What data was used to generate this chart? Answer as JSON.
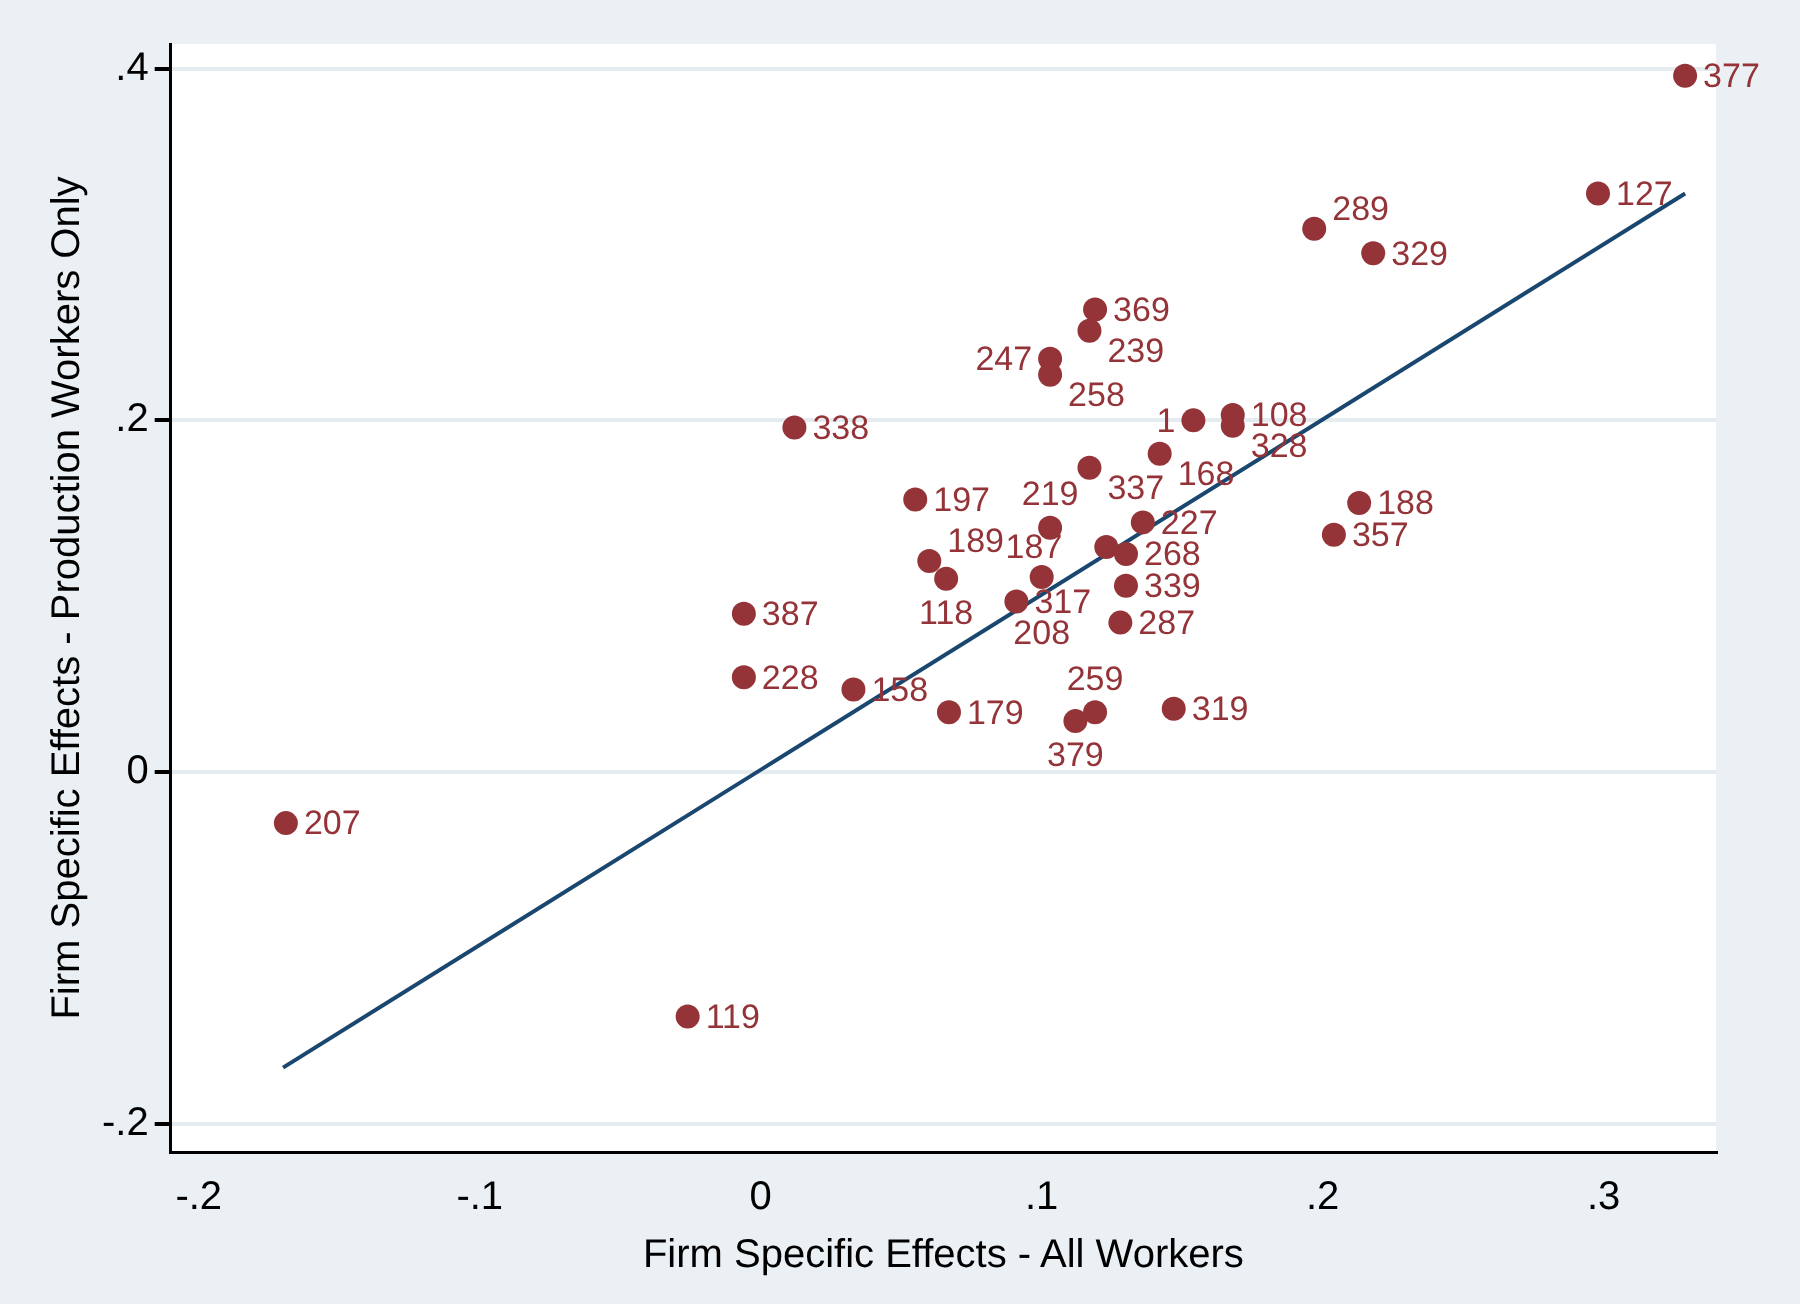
{
  "chart_data": {
    "type": "scatter",
    "xlabel": "Firm Specific Effects - All Workers",
    "ylabel": "Firm Specific Effects - Production Workers Only",
    "xlim": [
      -0.21,
      0.34
    ],
    "ylim": [
      -0.216,
      0.414
    ],
    "xticks": [
      {
        "value": -0.2,
        "label": "-.2"
      },
      {
        "value": -0.1,
        "label": "-.1"
      },
      0,
      {
        "value": 0.1,
        "label": ".1"
      },
      {
        "value": 0.2,
        "label": ".2"
      },
      {
        "value": 0.3,
        "label": ".3"
      }
    ],
    "yticks": [
      {
        "value": -0.2,
        "label": "-.2"
      },
      0,
      {
        "value": 0.2,
        "label": ".2"
      },
      {
        "value": 0.4,
        "label": ".4"
      }
    ],
    "grid": "y",
    "marker": "circle",
    "series": [
      {
        "type": "scatter",
        "color": "#943338",
        "x": [
          0.329,
          0.298,
          0.197,
          0.218,
          0.119,
          0.117,
          0.103,
          0.103,
          0.012,
          0.154,
          0.168,
          0.168,
          0.142,
          0.117,
          0.055,
          0.103,
          0.136,
          0.123,
          0.13,
          0.213,
          0.204,
          0.06,
          0.066,
          0.1,
          0.13,
          0.091,
          0.128,
          -0.006,
          -0.006,
          0.033,
          0.067,
          0.119,
          0.112,
          0.147,
          -0.169,
          -0.026
        ],
        "values": [
          0.396,
          0.329,
          0.309,
          0.295,
          0.263,
          0.251,
          0.235,
          0.226,
          0.196,
          0.2,
          0.203,
          0.197,
          0.181,
          0.173,
          0.155,
          0.139,
          0.142,
          0.128,
          0.124,
          0.153,
          0.135,
          0.12,
          0.11,
          0.111,
          0.106,
          0.097,
          0.085,
          0.09,
          0.054,
          0.047,
          0.034,
          0.034,
          0.029,
          0.036,
          -0.029,
          -0.139
        ]
      },
      {
        "type": "line",
        "marker": "none",
        "color": "#1a476f",
        "x": [
          -0.17,
          0.329
        ],
        "values": [
          -0.168,
          0.329
        ]
      }
    ],
    "annotations": [
      {
        "text": "377",
        "x": 0.329,
        "y": 0.396
      },
      {
        "text": "127",
        "x": 0.298,
        "y": 0.329
      },
      {
        "text": "289",
        "x": 0.197,
        "y": 0.309
      },
      {
        "text": "329",
        "x": 0.218,
        "y": 0.295
      },
      {
        "text": "369",
        "x": 0.119,
        "y": 0.263
      },
      {
        "text": "239",
        "x": 0.117,
        "y": 0.251
      },
      {
        "text": "247",
        "x": 0.103,
        "y": 0.235
      },
      {
        "text": "258",
        "x": 0.103,
        "y": 0.226
      },
      {
        "text": "338",
        "x": 0.012,
        "y": 0.196
      },
      {
        "text": "1",
        "x": 0.154,
        "y": 0.2
      },
      {
        "text": "108",
        "x": 0.168,
        "y": 0.203
      },
      {
        "text": "328",
        "x": 0.168,
        "y": 0.197
      },
      {
        "text": "168",
        "x": 0.142,
        "y": 0.181
      },
      {
        "text": "337",
        "x": 0.117,
        "y": 0.173
      },
      {
        "text": "197",
        "x": 0.055,
        "y": 0.155
      },
      {
        "text": "219",
        "x": 0.103,
        "y": 0.139
      },
      {
        "text": "227",
        "x": 0.136,
        "y": 0.142
      },
      {
        "text": "187",
        "x": 0.123,
        "y": 0.128
      },
      {
        "text": "268",
        "x": 0.13,
        "y": 0.124
      },
      {
        "text": "188",
        "x": 0.213,
        "y": 0.153
      },
      {
        "text": "357",
        "x": 0.204,
        "y": 0.135
      },
      {
        "text": "189",
        "x": 0.06,
        "y": 0.12
      },
      {
        "text": "118",
        "x": 0.066,
        "y": 0.11
      },
      {
        "text": "208",
        "x": 0.1,
        "y": 0.111
      },
      {
        "text": "339",
        "x": 0.13,
        "y": 0.106
      },
      {
        "text": "317",
        "x": 0.091,
        "y": 0.097
      },
      {
        "text": "287",
        "x": 0.128,
        "y": 0.085
      },
      {
        "text": "387",
        "x": -0.006,
        "y": 0.09
      },
      {
        "text": "228",
        "x": -0.006,
        "y": 0.054
      },
      {
        "text": "158",
        "x": 0.033,
        "y": 0.047
      },
      {
        "text": "179",
        "x": 0.067,
        "y": 0.034
      },
      {
        "text": "259",
        "x": 0.119,
        "y": 0.034
      },
      {
        "text": "379",
        "x": 0.112,
        "y": 0.029
      },
      {
        "text": "319",
        "x": 0.147,
        "y": 0.036
      },
      {
        "text": "207",
        "x": -0.169,
        "y": -0.029
      },
      {
        "text": "119",
        "x": -0.026,
        "y": -0.139
      }
    ]
  }
}
